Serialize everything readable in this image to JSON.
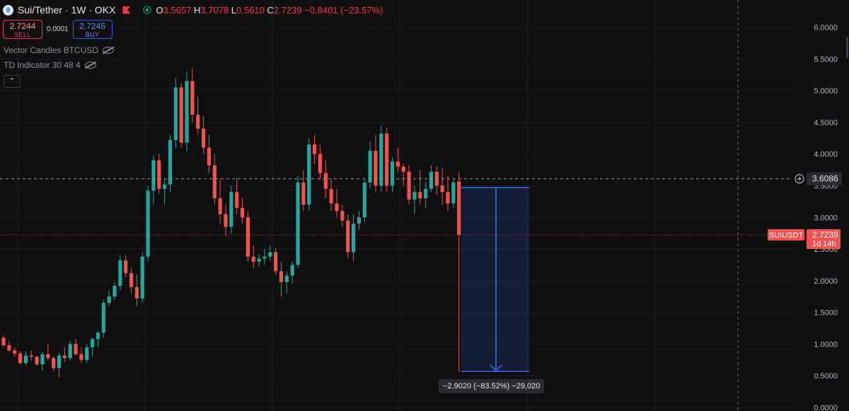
{
  "header": {
    "title": "Sui/Tether · 1W · OKX",
    "o_label": "O",
    "o_value": "3.5657",
    "h_label": "H",
    "h_value": "3.7078",
    "l_label": "L",
    "l_value": "0.5610",
    "c_label": "C",
    "c_value": "2.7239",
    "change": "−0.8401 (−23.57%)"
  },
  "trade": {
    "sell_price": "2.7244",
    "sell_label": "SELL",
    "spread": "0.0001",
    "buy_price": "2.7245",
    "buy_label": "BUY"
  },
  "indicators": [
    {
      "label": "Vector Candles BTCUSD"
    },
    {
      "label": "TD Indicator 30 48 4"
    }
  ],
  "measure": {
    "label": "−2.9020 (−83.52%) −29,020",
    "from": 3.47,
    "to": 0.57
  },
  "crosshair": {
    "price_label": "3.6086",
    "price": 3.6086
  },
  "last_price": {
    "symbol": "SUIUSDT",
    "price_label": "2.7239",
    "price": 2.7239,
    "countdown": "1d 14h"
  },
  "colors": {
    "up": "#26a69a",
    "down": "#ef5350",
    "measure": "#3b6ff5",
    "bg": "#0f0f0f"
  },
  "chart_data": {
    "type": "candlestick",
    "y_ticks": [
      "6.0000",
      "5.5000",
      "5.0000",
      "4.5000",
      "4.0000",
      "3.5000",
      "3.0000",
      "2.5000",
      "2.0000",
      "1.5000",
      "1.0000",
      "0.5000",
      "0.0000"
    ],
    "ylim": [
      0,
      6.0
    ],
    "candles": [
      [
        1.1,
        1.14,
        0.95,
        0.98
      ],
      [
        0.98,
        1.05,
        0.88,
        0.9
      ],
      [
        0.9,
        0.95,
        0.8,
        0.85
      ],
      [
        0.85,
        0.88,
        0.68,
        0.7
      ],
      [
        0.7,
        0.88,
        0.66,
        0.82
      ],
      [
        0.82,
        0.9,
        0.74,
        0.8
      ],
      [
        0.8,
        0.82,
        0.65,
        0.68
      ],
      [
        0.68,
        0.88,
        0.58,
        0.84
      ],
      [
        0.84,
        1.0,
        0.74,
        0.78
      ],
      [
        0.78,
        0.8,
        0.58,
        0.62
      ],
      [
        0.62,
        0.86,
        0.48,
        0.82
      ],
      [
        0.82,
        0.95,
        0.72,
        0.78
      ],
      [
        0.78,
        1.05,
        0.74,
        1.0
      ],
      [
        1.0,
        1.08,
        0.82,
        0.84
      ],
      [
        0.84,
        0.95,
        0.7,
        0.75
      ],
      [
        0.75,
        1.0,
        0.7,
        0.95
      ],
      [
        0.95,
        1.1,
        0.8,
        1.08
      ],
      [
        1.08,
        1.2,
        0.95,
        1.18
      ],
      [
        1.18,
        1.7,
        1.1,
        1.65
      ],
      [
        1.65,
        1.85,
        1.6,
        1.75
      ],
      [
        1.75,
        1.98,
        1.7,
        1.92
      ],
      [
        1.92,
        2.4,
        1.85,
        2.32
      ],
      [
        2.32,
        2.4,
        2.05,
        2.12
      ],
      [
        2.12,
        2.2,
        1.8,
        1.9
      ],
      [
        1.9,
        2.1,
        1.6,
        1.72
      ],
      [
        1.72,
        2.45,
        1.65,
        2.38
      ],
      [
        2.38,
        3.5,
        2.3,
        3.42
      ],
      [
        3.42,
        3.98,
        3.2,
        3.9
      ],
      [
        3.9,
        4.0,
        3.38,
        3.45
      ],
      [
        3.45,
        3.6,
        3.2,
        3.52
      ],
      [
        3.52,
        4.3,
        3.4,
        4.22
      ],
      [
        4.22,
        5.2,
        4.1,
        5.05
      ],
      [
        5.05,
        5.12,
        4.1,
        4.18
      ],
      [
        4.18,
        5.3,
        4.05,
        5.15
      ],
      [
        5.15,
        5.35,
        4.5,
        4.62
      ],
      [
        4.62,
        4.9,
        4.3,
        4.4
      ],
      [
        4.4,
        4.6,
        4.0,
        4.1
      ],
      [
        4.1,
        4.3,
        3.7,
        3.82
      ],
      [
        3.82,
        4.0,
        3.2,
        3.3
      ],
      [
        3.3,
        3.6,
        2.9,
        3.05
      ],
      [
        3.05,
        3.2,
        2.7,
        2.85
      ],
      [
        2.85,
        3.5,
        2.75,
        3.4
      ],
      [
        3.4,
        3.62,
        3.05,
        3.15
      ],
      [
        3.15,
        3.3,
        2.9,
        3.0
      ],
      [
        3.0,
        3.1,
        2.3,
        2.38
      ],
      [
        2.38,
        2.55,
        2.2,
        2.3
      ],
      [
        2.3,
        2.42,
        2.22,
        2.35
      ],
      [
        2.35,
        2.5,
        2.25,
        2.38
      ],
      [
        2.38,
        2.55,
        2.3,
        2.45
      ],
      [
        2.45,
        2.52,
        2.1,
        2.15
      ],
      [
        2.15,
        2.3,
        1.75,
        1.98
      ],
      [
        1.98,
        2.15,
        1.8,
        2.08
      ],
      [
        2.08,
        2.3,
        1.95,
        2.25
      ],
      [
        2.25,
        3.65,
        2.2,
        3.55
      ],
      [
        3.55,
        3.75,
        3.1,
        3.2
      ],
      [
        3.2,
        4.25,
        3.1,
        4.15
      ],
      [
        4.15,
        4.3,
        3.85,
        4.0
      ],
      [
        4.0,
        4.15,
        3.6,
        3.7
      ],
      [
        3.7,
        3.9,
        3.3,
        3.45
      ],
      [
        3.45,
        3.6,
        3.1,
        3.22
      ],
      [
        3.22,
        3.45,
        3.0,
        3.1
      ],
      [
        3.1,
        3.2,
        2.85,
        2.95
      ],
      [
        2.95,
        3.05,
        2.35,
        2.45
      ],
      [
        2.45,
        3.05,
        2.3,
        2.9
      ],
      [
        2.9,
        3.1,
        2.8,
        3.0
      ],
      [
        3.0,
        3.6,
        2.92,
        3.55
      ],
      [
        3.55,
        4.2,
        3.45,
        4.05
      ],
      [
        4.05,
        4.3,
        3.4,
        3.5
      ],
      [
        3.5,
        4.45,
        3.4,
        4.32
      ],
      [
        4.32,
        4.42,
        3.4,
        3.5
      ],
      [
        3.5,
        3.95,
        3.4,
        3.88
      ],
      [
        3.88,
        4.1,
        3.7,
        3.8
      ],
      [
        3.8,
        3.85,
        3.5,
        3.72
      ],
      [
        3.72,
        3.82,
        3.2,
        3.28
      ],
      [
        3.28,
        3.5,
        3.05,
        3.4
      ],
      [
        3.4,
        3.75,
        3.2,
        3.3
      ],
      [
        3.3,
        3.55,
        3.15,
        3.45
      ],
      [
        3.45,
        3.82,
        3.4,
        3.72
      ],
      [
        3.72,
        3.8,
        3.35,
        3.5
      ],
      [
        3.5,
        3.78,
        3.2,
        3.4
      ],
      [
        3.4,
        3.65,
        3.1,
        3.22
      ],
      [
        3.22,
        3.6,
        3.15,
        3.55
      ],
      [
        3.5657,
        3.7078,
        0.561,
        2.7239
      ]
    ]
  }
}
